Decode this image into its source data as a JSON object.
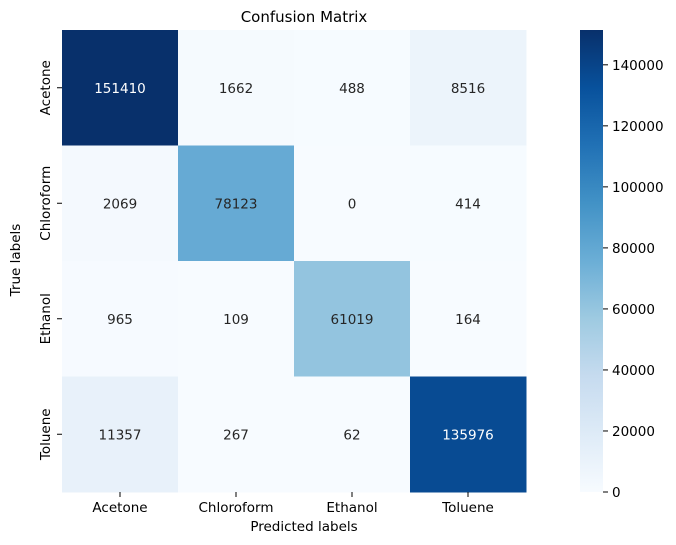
{
  "chart_data": {
    "type": "heatmap",
    "title": "Confusion Matrix",
    "xlabel": "Predicted labels",
    "ylabel": "True labels",
    "x_categories": [
      "Acetone",
      "Chloroform",
      "Ethanol",
      "Toluene"
    ],
    "y_categories": [
      "Acetone",
      "Chloroform",
      "Ethanol",
      "Toluene"
    ],
    "values": [
      [
        151410,
        1662,
        488,
        8516
      ],
      [
        2069,
        78123,
        0,
        414
      ],
      [
        965,
        109,
        61019,
        164
      ],
      [
        11357,
        267,
        62,
        135976
      ]
    ],
    "colormap": "Blues",
    "colormap_low": "#f7fbff",
    "colormap_high": "#08306b",
    "colorbar": {
      "range": [
        0,
        151410
      ],
      "ticks": [
        0,
        20000,
        40000,
        60000,
        80000,
        100000,
        120000,
        140000
      ]
    }
  }
}
